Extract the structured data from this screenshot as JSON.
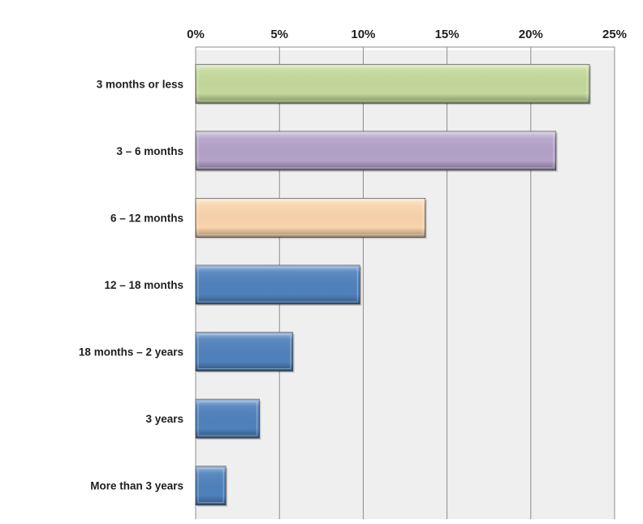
{
  "chart_data": {
    "type": "bar",
    "orientation": "horizontal",
    "categories": [
      "3 months or less",
      "3 – 6 months",
      "6 – 12 months",
      "12 – 18 months",
      "18 months – 2 years",
      "3 years",
      "More than 3 years"
    ],
    "values": [
      23.5,
      21.5,
      13.7,
      9.8,
      5.8,
      3.8,
      1.8
    ],
    "value_unit": "%",
    "xlim": [
      0,
      25
    ],
    "x_ticks": [
      0,
      5,
      10,
      15,
      20,
      25
    ],
    "x_tick_labels": [
      "0%",
      "5%",
      "10%",
      "15%",
      "20%",
      "25%"
    ],
    "x_axis_position": "top",
    "grid": true,
    "legend": "none",
    "bar_colors": [
      "#c3d89b",
      "#b3a2c9",
      "#f9d3ac",
      "#4f81bd",
      "#4f81bd",
      "#4f81bd",
      "#4f81bd"
    ],
    "plot_background": "#efefef"
  }
}
